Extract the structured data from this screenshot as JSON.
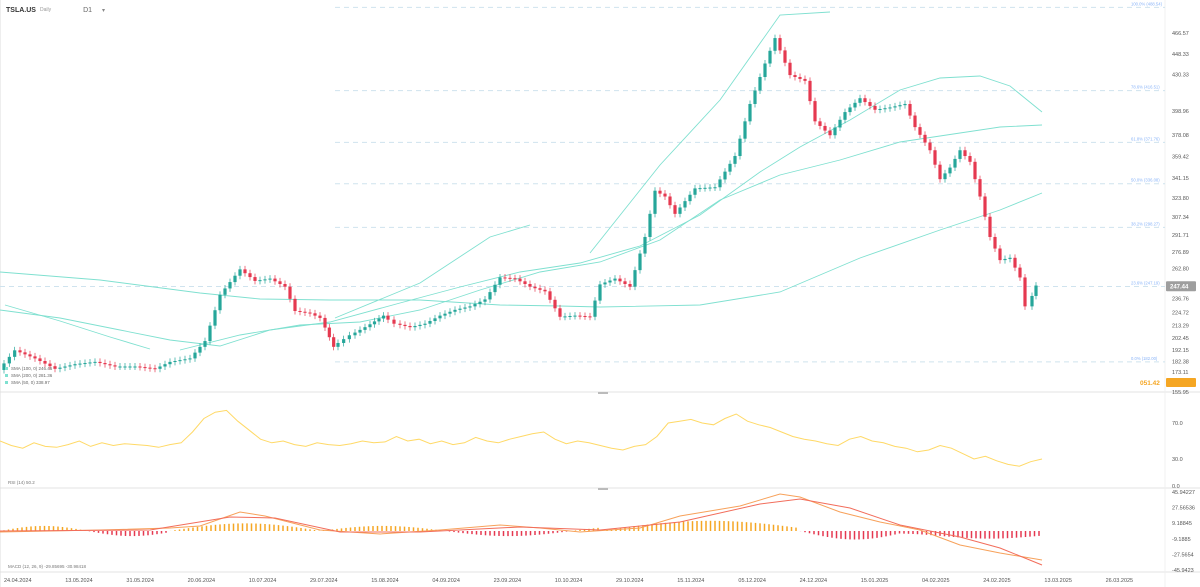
{
  "header": {
    "symbol": "TSLA.US",
    "symbol_suffix": "Daily",
    "interval": "D1",
    "caret": "▾"
  },
  "colors": {
    "up": "#26a69a",
    "down": "#e53950",
    "sma_lines": "#7fe0d0",
    "rsi": "#ffd966",
    "macd_hist": "#f5a623",
    "macd_line": "#f7a15a",
    "signal_line": "#f26d5b",
    "last_price_bg": "#9e9e9e",
    "fib_label": "#8ab4f8",
    "orange_marker": "#f5a623"
  },
  "price_axis": [
    "466.57",
    "448.33",
    "430.33",
    "398.96",
    "378.08",
    "359.42",
    "341.15",
    "323.80",
    "307.34",
    "291.71",
    "276.89",
    "262.80",
    "247.44",
    "236.76",
    "224.72",
    "213.29",
    "202.45",
    "192.15",
    "182.38",
    "173.11",
    "164.31",
    "155.95"
  ],
  "last_price": "247.44",
  "orange_value": "051.42",
  "fib_labels": [
    "100.0% (488.54)",
    "78.6% (416.51)",
    "61.8% (371.76)",
    "50.0% (336.08)",
    "38.2% (298.27)",
    "23.6% (247.19)",
    "0.0% (182.00)"
  ],
  "legend": [
    "SMA (100, 0) 246.46",
    "SMA (200, 0) 281.36",
    "SMA (50, 0) 338.97"
  ],
  "rsi": {
    "label": "RSI (14) 50.2",
    "levels": [
      "70.0",
      "30.0",
      "0.0"
    ]
  },
  "macd": {
    "label": "MACD (12, 26, 9) -29.85695   -30.98418",
    "levels": [
      "45.94227",
      "27.56536",
      "9.18845",
      "-9.1885",
      "-27.5654",
      "-45.9423"
    ]
  },
  "date_axis": [
    "24.04.2024",
    "13.05.2024",
    "31.05.2024",
    "20.06.2024",
    "10.07.2024",
    "29.07.2024",
    "15.08.2024",
    "04.09.2024",
    "23.09.2024",
    "10.10.2024",
    "29.10.2024",
    "15.11.2024",
    "05.12.2024",
    "24.12.2024",
    "15.01.2025",
    "04.02.2025",
    "24.02.2025",
    "13.03.2025",
    "26.03.2025"
  ]
}
